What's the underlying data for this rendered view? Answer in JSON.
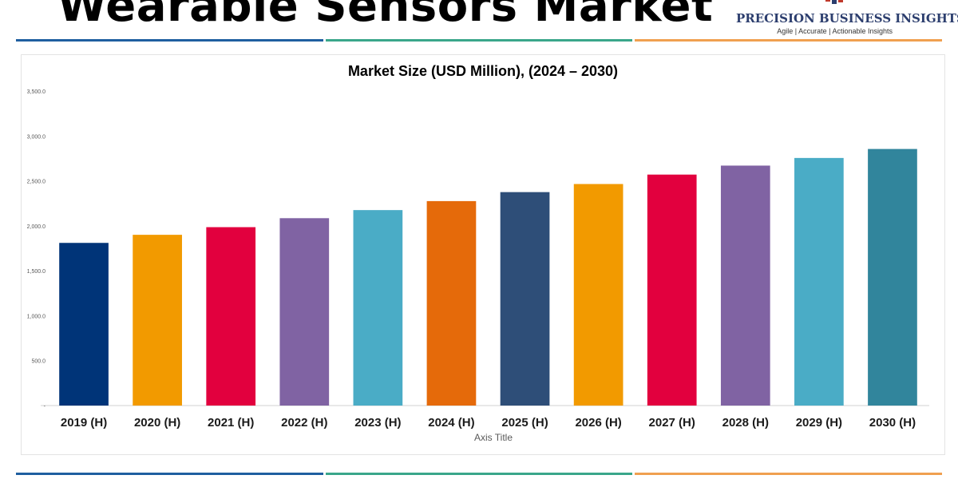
{
  "page": {
    "title": "Wearable Sensors Market",
    "logo": {
      "name": "PRECISION BUSINESS INSIGHTS",
      "tagline": "Agile | Accurate | Actionable Insights"
    },
    "rule_colors": [
      "#1f5fa0",
      "#3aa68a",
      "#f0a050"
    ]
  },
  "chart_data": {
    "type": "bar",
    "title": "Market Size (USD Million), (2024 – 2030)",
    "xlabel": "Axis Title",
    "ylabel": "",
    "ylim": [
      0,
      3500
    ],
    "yticks": [
      0,
      500,
      1000,
      1500,
      2000,
      2500,
      3000,
      3500
    ],
    "ytick_labels": [
      "-",
      "500.0",
      "1,000.0",
      "1,500.0",
      "2,000.0",
      "2,500.0",
      "3,000.0",
      "3,500.0"
    ],
    "grid": false,
    "legend": "none",
    "categories": [
      "2019 (H)",
      "2020 (H)",
      "2021 (H)",
      "2022 (H)",
      "2023 (H)",
      "2024 (H)",
      "2025 (H)",
      "2026 (H)",
      "2027 (H)",
      "2028 (H)",
      "2029 (H)",
      "2030 (H)"
    ],
    "values": [
      1810,
      1900,
      1985,
      2085,
      2175,
      2275,
      2375,
      2465,
      2570,
      2670,
      2755,
      2855
    ],
    "colors": [
      "#003478",
      "#f29a00",
      "#e2003e",
      "#8063a3",
      "#4aacc6",
      "#e56a0a",
      "#2e4e78",
      "#f29a00",
      "#e2003e",
      "#8063a3",
      "#4aacc6",
      "#31859c"
    ]
  }
}
